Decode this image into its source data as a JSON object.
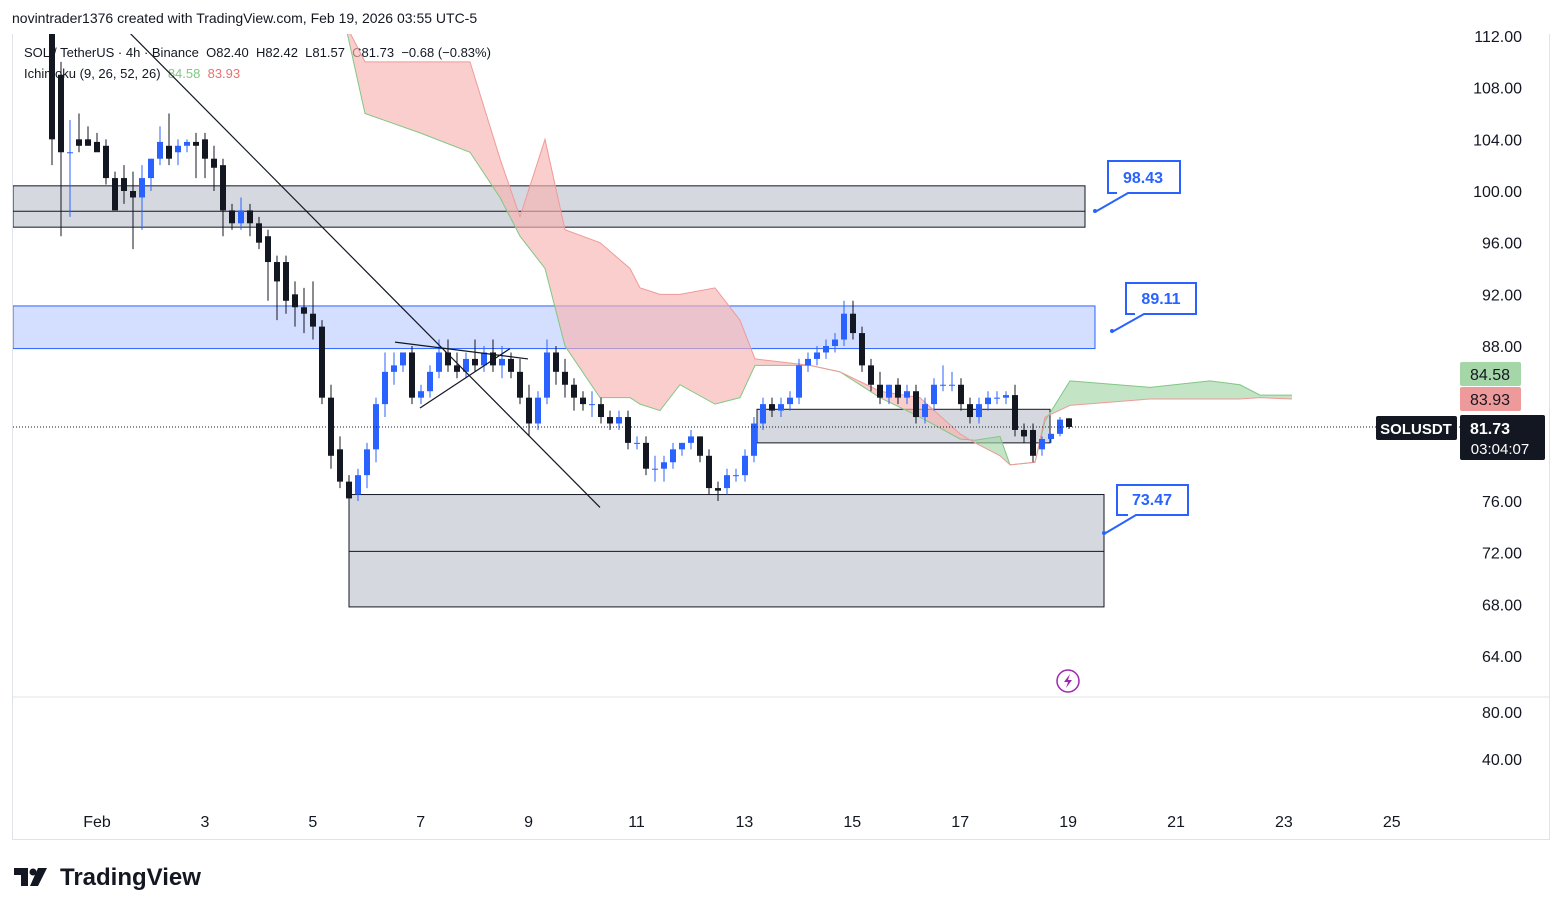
{
  "header": {
    "attribution": "novintrader1376 created with TradingView.com, Feb 19, 2026 03:55 UTC-5"
  },
  "legend": {
    "symbol": "SOL / TetherUS · 4h · Binance",
    "open": "O82.40",
    "high": "H82.42",
    "low": "L81.57",
    "close": "C81.73",
    "change": "−0.68 (−0.83%)",
    "indicator": "Ichimoku (9, 26, 52, 26)",
    "ind_val1": "84.58",
    "ind_val2": "83.93"
  },
  "price_axis": {
    "labels": [
      "112.00",
      "108.00",
      "104.00",
      "100.00",
      "96.00",
      "92.00",
      "88.00",
      "76.00",
      "72.00",
      "68.00",
      "64.00"
    ],
    "sub_labels": [
      "80.00",
      "40.00"
    ]
  },
  "badges": {
    "span_a": "84.58",
    "span_b": "83.93",
    "symbol": "SOLUSDT",
    "price": "81.73",
    "countdown": "03:04:07"
  },
  "callouts": [
    "98.43",
    "89.11",
    "73.47"
  ],
  "time_axis": [
    "Feb",
    "3",
    "5",
    "7",
    "9",
    "11",
    "13",
    "15",
    "17",
    "19",
    "21",
    "23",
    "25"
  ],
  "footer": {
    "brand": "TradingView"
  },
  "colors": {
    "up": "#2962ff",
    "down": "#131722",
    "cloud_bear": "#f8b4b0",
    "cloud_bull": "#a5d6a7",
    "zone_grey": "#d1d4dc",
    "zone_blue": "#cfdcff"
  },
  "chart_data": {
    "type": "candlestick",
    "title": "SOL / TetherUS · 4h · Binance",
    "ylim": [
      63,
      113
    ],
    "xlabel": "",
    "ylabel": "",
    "last_price": 81.73,
    "zones": [
      {
        "name": "upper-resistance",
        "from": 97.2,
        "to": 100.4,
        "mid": 98.43
      },
      {
        "name": "blue-resistance",
        "from": 87.8,
        "to": 91.1,
        "mid": 89.11
      },
      {
        "name": "mid-support",
        "from": 80.5,
        "to": 83.1
      },
      {
        "name": "demand-zone",
        "from": 67.8,
        "to": 76.5,
        "mid": 72.1
      }
    ],
    "cloud": [
      {
        "x": 345,
        "a": 113,
        "b": 113
      },
      {
        "x": 365,
        "a": 106,
        "b": 110
      },
      {
        "x": 420,
        "a": 104.5,
        "b": 110
      },
      {
        "x": 470,
        "a": 103,
        "b": 110
      },
      {
        "x": 500,
        "a": 99.5,
        "b": 102.5
      },
      {
        "x": 520,
        "a": 96.5,
        "b": 98
      },
      {
        "x": 545,
        "a": 94,
        "b": 104
      },
      {
        "x": 565,
        "a": 88,
        "b": 97
      },
      {
        "x": 600,
        "a": 84,
        "b": 96
      },
      {
        "x": 630,
        "a": 84,
        "b": 94
      },
      {
        "x": 640,
        "a": 83.5,
        "b": 92.5
      },
      {
        "x": 660,
        "a": 83,
        "b": 92
      },
      {
        "x": 680,
        "a": 85,
        "b": 92
      },
      {
        "x": 715,
        "a": 83.5,
        "b": 92.5
      },
      {
        "x": 740,
        "a": 84,
        "b": 90
      },
      {
        "x": 755,
        "a": 86.5,
        "b": 87
      },
      {
        "x": 810,
        "a": 86.5,
        "b": 86.5
      },
      {
        "x": 840,
        "a": 86,
        "b": 86
      },
      {
        "x": 880,
        "a": 84,
        "b": 84.5
      },
      {
        "x": 920,
        "a": 82.5,
        "b": 84
      },
      {
        "x": 960,
        "a": 80.8,
        "b": 81.2
      },
      {
        "x": 975,
        "a": 80.7,
        "b": 80.5
      },
      {
        "x": 1000,
        "a": 81.0,
        "b": 79.5
      },
      {
        "x": 1010,
        "a": 78.8,
        "b": 78.8
      },
      {
        "x": 1035,
        "a": 79.0,
        "b": 79.0
      },
      {
        "x": 1045,
        "a": 82.2,
        "b": 82.5
      },
      {
        "x": 1070,
        "a": 85.3,
        "b": 83.4
      },
      {
        "x": 1150,
        "a": 84.8,
        "b": 83.9
      },
      {
        "x": 1210,
        "a": 85.3,
        "b": 83.9
      },
      {
        "x": 1240,
        "a": 85.0,
        "b": 83.9
      },
      {
        "x": 1260,
        "a": 84.2,
        "b": 84.0
      },
      {
        "x": 1292,
        "a": 84.2,
        "b": 83.9
      }
    ],
    "candles": [
      [
        52,
        112.5,
        114,
        104,
        102
      ],
      [
        61,
        109,
        110,
        103,
        96.5
      ],
      [
        70,
        103,
        105.5,
        103,
        98
      ],
      [
        79,
        104,
        106,
        103.5,
        103
      ],
      [
        88,
        104,
        105,
        103.5,
        103.8
      ],
      [
        97,
        103.8,
        104.5,
        103,
        103.5
      ],
      [
        106,
        103.5,
        104,
        101,
        100.5
      ],
      [
        115,
        101,
        101.5,
        98.5,
        100.5
      ],
      [
        124,
        101,
        102,
        100,
        99
      ],
      [
        133,
        100,
        101.5,
        99.5,
        95.5
      ],
      [
        142,
        99.5,
        102,
        101,
        97
      ],
      [
        151,
        101,
        102.5,
        102.5,
        100
      ],
      [
        160,
        102.5,
        105,
        103.8,
        102
      ],
      [
        169,
        103.5,
        106,
        102.5,
        102
      ],
      [
        178,
        103,
        104,
        103.5,
        102
      ],
      [
        187,
        103.5,
        104,
        103.8,
        103
      ],
      [
        196,
        103.8,
        104.5,
        103.5,
        101
      ],
      [
        205,
        104,
        104.5,
        102.5,
        101
      ],
      [
        214,
        102.5,
        103.5,
        101.8,
        100
      ],
      [
        223,
        102,
        102.5,
        98.5,
        96.5
      ],
      [
        232,
        98.5,
        99,
        97.5,
        97
      ],
      [
        241,
        97.5,
        99.5,
        98.5,
        97
      ],
      [
        250,
        98.5,
        99,
        97.5,
        96.5
      ],
      [
        259,
        97.5,
        98,
        96,
        95.5
      ],
      [
        268,
        96.5,
        97,
        94.5,
        91.5
      ],
      [
        277,
        94.5,
        95,
        93,
        90
      ],
      [
        286,
        94.5,
        95,
        91.5,
        90.5
      ],
      [
        295,
        92,
        93,
        91,
        89.5
      ],
      [
        304,
        91,
        92.5,
        90.5,
        89
      ],
      [
        313,
        90.5,
        93,
        89.5,
        88.5
      ],
      [
        322,
        89.5,
        90,
        84,
        83.5
      ],
      [
        331,
        84,
        85,
        79.5,
        78.5
      ],
      [
        340,
        80,
        81,
        77.5,
        77
      ],
      [
        349,
        77.5,
        78,
        76.2,
        75.8
      ],
      [
        358,
        76.5,
        78.5,
        78,
        76
      ],
      [
        367,
        78,
        80.5,
        80,
        77
      ],
      [
        376,
        80,
        84,
        83.5,
        79
      ],
      [
        385,
        83.5,
        87.5,
        86,
        82.5
      ],
      [
        394,
        86,
        87.5,
        86.5,
        85
      ],
      [
        403,
        86.5,
        87.5,
        87.5,
        86
      ],
      [
        412,
        87.5,
        88,
        84,
        83.5
      ],
      [
        421,
        84,
        85,
        84.5,
        83.5
      ],
      [
        430,
        84.5,
        86.5,
        86,
        84
      ],
      [
        439,
        86,
        88.5,
        87.5,
        85.5
      ],
      [
        448,
        87.5,
        88.5,
        86.5,
        86
      ],
      [
        457,
        86.5,
        87.5,
        86,
        85.5
      ],
      [
        466,
        86,
        87.5,
        87,
        85.5
      ],
      [
        475,
        87,
        88.5,
        86.5,
        86
      ],
      [
        484,
        86.5,
        88,
        87.5,
        86
      ],
      [
        493,
        87.5,
        88.5,
        86.5,
        86
      ],
      [
        502,
        86.5,
        88,
        87,
        85.5
      ],
      [
        511,
        87,
        87.5,
        86,
        85.5
      ],
      [
        520,
        86,
        87,
        84,
        83.5
      ],
      [
        529,
        84,
        85,
        82,
        81
      ],
      [
        538,
        82,
        84.5,
        84,
        81.5
      ],
      [
        547,
        84,
        88.5,
        87.5,
        83.5
      ],
      [
        556,
        87.5,
        88,
        86,
        85
      ],
      [
        565,
        86,
        87,
        85,
        84
      ],
      [
        574,
        85,
        85.5,
        84,
        83
      ],
      [
        583,
        84,
        84.5,
        83.5,
        83
      ],
      [
        592,
        83.5,
        84.5,
        83.5,
        82.5
      ],
      [
        601,
        83.5,
        84,
        82.5,
        82
      ],
      [
        610,
        82.5,
        83,
        82,
        81.5
      ],
      [
        619,
        82,
        83,
        82.5,
        81.5
      ],
      [
        628,
        82.5,
        83,
        80.5,
        80
      ],
      [
        637,
        80.5,
        81,
        80.5,
        80
      ],
      [
        646,
        80.5,
        81,
        78.5,
        78
      ],
      [
        655,
        78.5,
        79.5,
        78.5,
        77.5
      ],
      [
        664,
        78.5,
        79.5,
        79,
        77.5
      ],
      [
        673,
        79,
        80.5,
        80,
        78.5
      ],
      [
        682,
        80,
        80.5,
        80.5,
        79.5
      ],
      [
        691,
        80.5,
        81.5,
        81,
        80
      ],
      [
        700,
        81,
        81,
        79.5,
        79
      ],
      [
        709,
        79.5,
        80,
        77,
        76.5
      ],
      [
        718,
        77,
        77.5,
        76.8,
        76
      ],
      [
        727,
        77,
        78.5,
        78,
        76.5
      ],
      [
        736,
        78,
        78.5,
        78,
        77.5
      ],
      [
        745,
        78,
        80,
        79.5,
        77.5
      ],
      [
        754,
        79.5,
        82.5,
        82,
        79
      ],
      [
        763,
        82,
        84,
        83.5,
        81.5
      ],
      [
        772,
        83.5,
        84,
        83,
        82.5
      ],
      [
        781,
        83,
        84,
        83.5,
        82.5
      ],
      [
        790,
        83.5,
        84.5,
        84,
        83
      ],
      [
        799,
        84,
        87,
        86.5,
        83.5
      ],
      [
        808,
        86.5,
        87.5,
        87,
        86
      ],
      [
        817,
        87,
        88,
        87.5,
        86.5
      ],
      [
        826,
        87.5,
        88.5,
        88,
        87
      ],
      [
        835,
        88,
        89,
        88.5,
        87.5
      ],
      [
        844,
        88.5,
        91.5,
        90.5,
        88
      ],
      [
        853,
        90.5,
        91.5,
        89,
        88.5
      ],
      [
        862,
        89,
        89.5,
        86.5,
        86
      ],
      [
        871,
        86.5,
        87,
        85,
        84.5
      ],
      [
        880,
        85,
        86,
        84,
        83.5
      ],
      [
        889,
        84,
        85,
        85,
        83.5
      ],
      [
        898,
        85,
        85.5,
        84,
        83.5
      ],
      [
        907,
        84,
        85,
        84.5,
        83.5
      ],
      [
        916,
        84.5,
        85,
        82.5,
        82
      ],
      [
        925,
        82.5,
        84,
        83.5,
        82
      ],
      [
        934,
        83.5,
        85.5,
        85,
        83
      ],
      [
        943,
        85,
        86.5,
        85,
        84.5
      ],
      [
        952,
        85,
        86,
        85,
        84.5
      ],
      [
        961,
        85,
        85.5,
        83.5,
        83
      ],
      [
        970,
        83.5,
        84,
        82.5,
        82
      ],
      [
        979,
        82.5,
        84,
        83.5,
        82
      ],
      [
        988,
        83.5,
        84.5,
        84,
        83
      ],
      [
        997,
        84,
        84.5,
        84,
        83.5
      ],
      [
        1006,
        84,
        84.5,
        84.2,
        83.5
      ],
      [
        1015,
        84.2,
        85,
        81.5,
        81
      ],
      [
        1024,
        81.5,
        82,
        81,
        80.5
      ],
      [
        1033,
        81.5,
        82,
        79.5,
        79
      ],
      [
        1042,
        80,
        81,
        80.8,
        79.5
      ],
      [
        1051,
        80.8,
        81.2,
        81.2,
        80.5
      ],
      [
        1060,
        81.2,
        82.5,
        82.3,
        81
      ],
      [
        1069,
        82.4,
        82.42,
        81.73,
        81.57
      ]
    ],
    "trendlines": [
      {
        "x1": 120,
        "y1": 113,
        "x2": 600,
        "y2": 75.5
      },
      {
        "x1": 395,
        "y1": 88.3,
        "x2": 528,
        "y2": 87
      },
      {
        "x1": 420,
        "y1": 83.2,
        "x2": 510,
        "y2": 87.8
      }
    ],
    "sub_indicator": {
      "labels": [
        "80.00",
        "40.00"
      ]
    }
  }
}
